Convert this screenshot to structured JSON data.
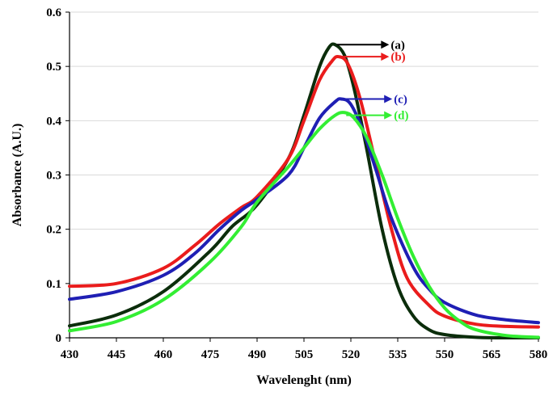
{
  "chart_data": {
    "type": "line",
    "xlabel": "Wavelenght (nm)",
    "ylabel": "Absorbance (A.U.)",
    "xlim": [
      430,
      580
    ],
    "ylim": [
      0,
      0.6
    ],
    "x_ticks": [
      430,
      445,
      460,
      475,
      490,
      505,
      520,
      535,
      550,
      565,
      580
    ],
    "y_ticks": [
      0,
      0.1,
      0.2,
      0.3,
      0.4,
      0.5,
      0.6
    ],
    "y_tick_labels": [
      "0",
      "0.1",
      "0.2",
      "0.3",
      "0.4",
      "0.5",
      "0.6"
    ],
    "grid": "horizontal",
    "series": [
      {
        "name": "(a)",
        "color": "#0b2d0b",
        "label_color": "#000000",
        "arrow_color": "#000000",
        "peak_x": 515,
        "peak_y": 0.54,
        "label_at": [
          525,
          0.54
        ],
        "x": [
          430,
          445,
          460,
          475,
          482,
          490,
          500,
          505,
          510,
          513,
          515,
          518,
          521,
          525,
          530,
          535,
          540,
          545,
          550,
          560,
          570,
          580
        ],
        "y": [
          0.022,
          0.042,
          0.085,
          0.16,
          0.205,
          0.245,
          0.33,
          0.41,
          0.5,
          0.535,
          0.54,
          0.52,
          0.46,
          0.35,
          0.2,
          0.095,
          0.04,
          0.015,
          0.006,
          0.001,
          0.0,
          0.0
        ]
      },
      {
        "name": "(b)",
        "color": "#ea1c1c",
        "label_color": "#ea1c1c",
        "arrow_color": "#ea1c1c",
        "peak_x": 516,
        "peak_y": 0.518,
        "label_at": [
          525,
          0.518
        ],
        "x": [
          430,
          445,
          460,
          470,
          478,
          485,
          490,
          500,
          505,
          510,
          514,
          516,
          519,
          523,
          528,
          533,
          538,
          545,
          550,
          560,
          570,
          580
        ],
        "y": [
          0.095,
          0.1,
          0.128,
          0.17,
          0.21,
          0.24,
          0.26,
          0.33,
          0.4,
          0.475,
          0.51,
          0.518,
          0.505,
          0.44,
          0.32,
          0.2,
          0.11,
          0.06,
          0.04,
          0.025,
          0.021,
          0.02
        ]
      },
      {
        "name": "(c)",
        "color": "#1f1fb4",
        "label_color": "#1f1fb4",
        "arrow_color": "#1f1fb4",
        "peak_x": 517,
        "peak_y": 0.44,
        "label_at": [
          526,
          0.44
        ],
        "x": [
          430,
          445,
          460,
          470,
          478,
          485,
          490,
          500,
          505,
          510,
          515,
          517,
          520,
          524,
          528,
          533,
          540,
          545,
          550,
          560,
          570,
          580
        ],
        "y": [
          0.071,
          0.085,
          0.115,
          0.155,
          0.2,
          0.235,
          0.255,
          0.3,
          0.35,
          0.405,
          0.435,
          0.44,
          0.43,
          0.38,
          0.31,
          0.22,
          0.13,
          0.09,
          0.065,
          0.042,
          0.033,
          0.028
        ]
      },
      {
        "name": "(d)",
        "color": "#33ee33",
        "label_color": "#33ee33",
        "arrow_color": "#33ee33",
        "peak_x": 518,
        "peak_y": 0.415,
        "label_at": [
          526,
          0.41
        ],
        "x": [
          430,
          445,
          460,
          475,
          485,
          490,
          500,
          505,
          510,
          515,
          518,
          521,
          525,
          530,
          535,
          540,
          545,
          550,
          555,
          560,
          570,
          580
        ],
        "y": [
          0.013,
          0.03,
          0.07,
          0.14,
          0.205,
          0.25,
          0.315,
          0.35,
          0.385,
          0.41,
          0.415,
          0.405,
          0.37,
          0.3,
          0.22,
          0.15,
          0.095,
          0.055,
          0.03,
          0.015,
          0.004,
          0.001
        ]
      }
    ]
  }
}
